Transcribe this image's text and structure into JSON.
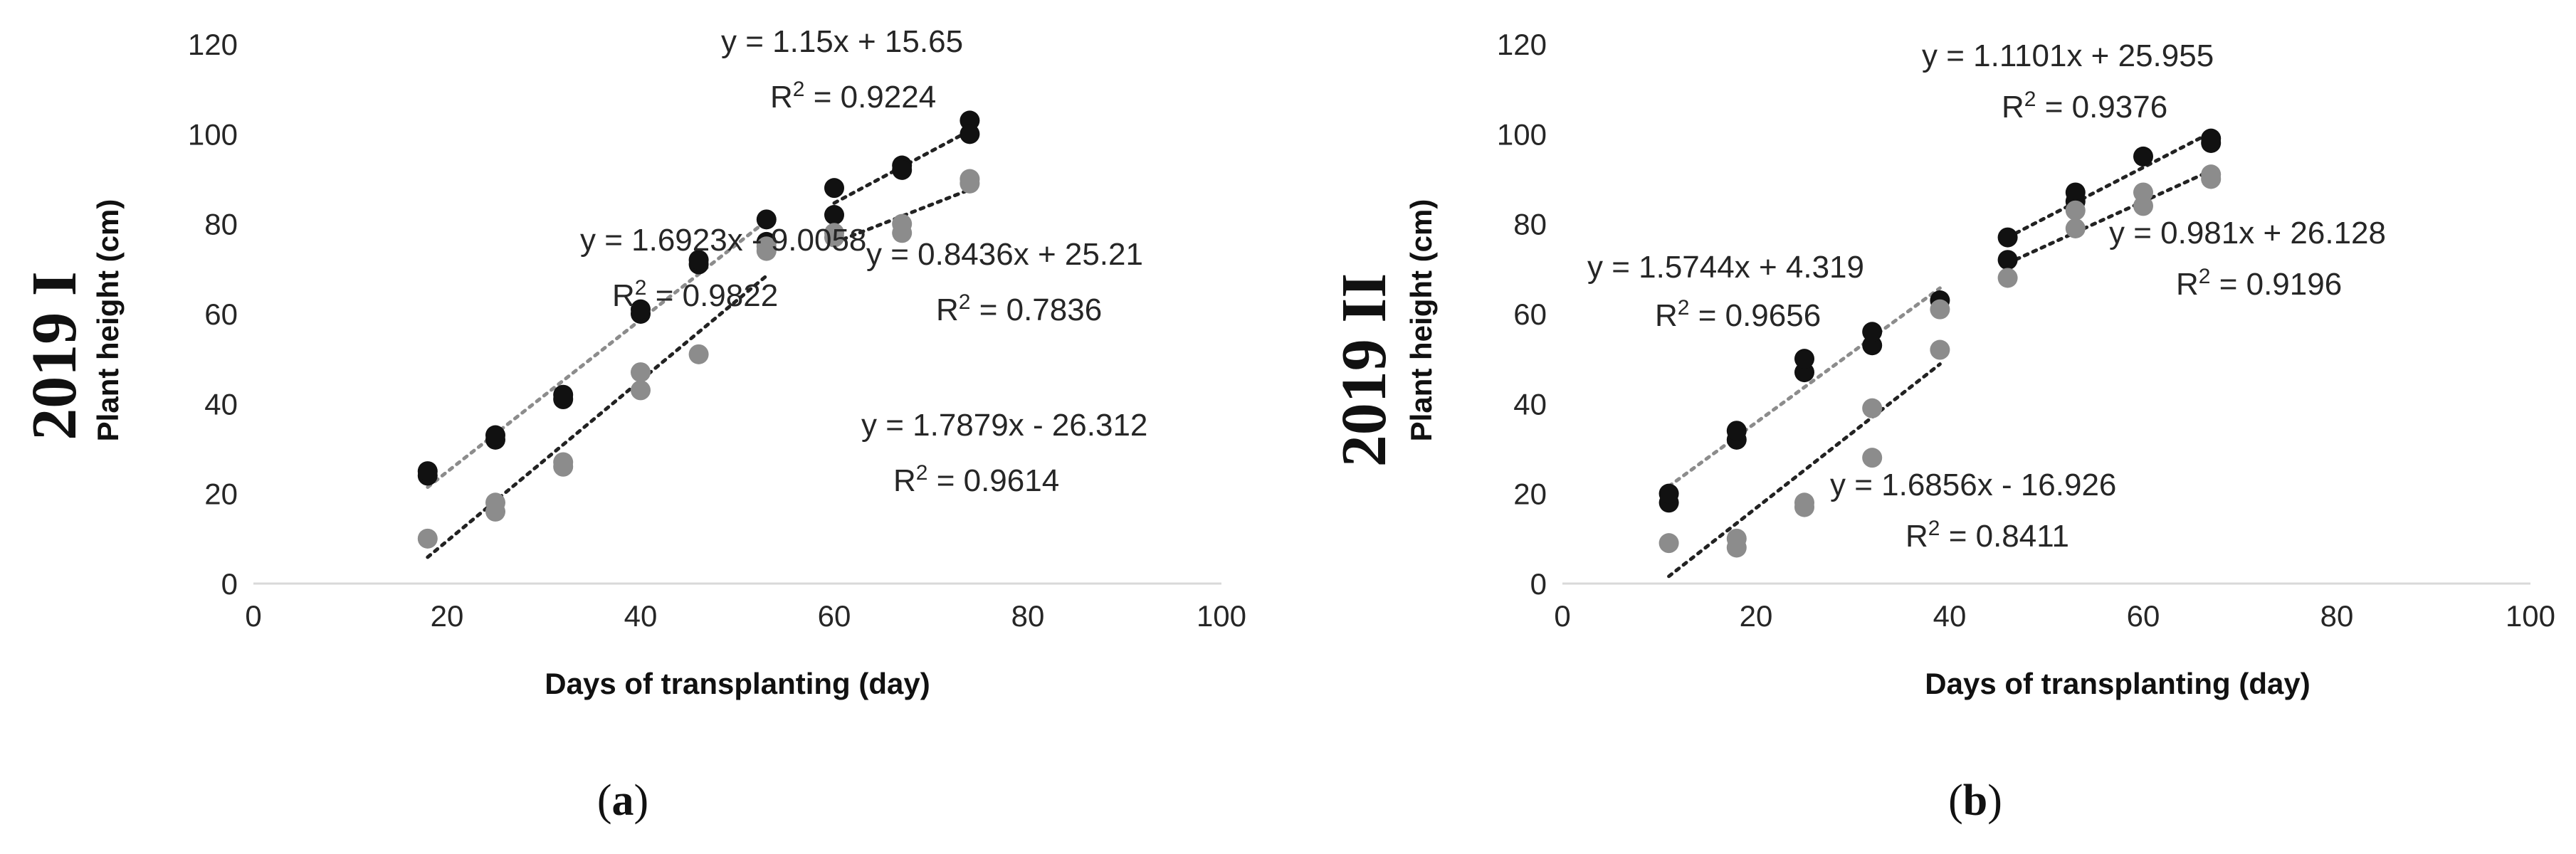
{
  "chart_data": [
    {
      "type": "scatter",
      "panel_label": "(a)",
      "panel_letter": "a",
      "year_label": "2019 I",
      "ylabel": "Plant height (cm)",
      "xlabel": "Days of transplanting (day)",
      "xlim": [
        0,
        100
      ],
      "ylim": [
        0,
        120
      ],
      "xticks": [
        "0",
        "20",
        "40",
        "60",
        "80",
        "100"
      ],
      "yticks": [
        "0",
        "20",
        "40",
        "60",
        "80",
        "100",
        "120"
      ],
      "grid": false,
      "colors": {
        "dark": "#111111",
        "gray": "#8c8c8c",
        "dark_trend": "#222222",
        "gray_trend": "#8c8c8c"
      },
      "series": [
        {
          "name": "dark-points",
          "color": "dark",
          "points": [
            [
              18,
              24
            ],
            [
              18,
              25
            ],
            [
              25,
              32
            ],
            [
              25,
              33
            ],
            [
              32,
              41
            ],
            [
              32,
              42
            ],
            [
              40,
              60
            ],
            [
              40,
              61
            ],
            [
              46,
              71
            ],
            [
              46,
              72
            ],
            [
              53,
              81
            ],
            [
              53,
              76
            ],
            [
              60,
              88
            ],
            [
              60,
              82
            ],
            [
              67,
              93
            ],
            [
              67,
              92
            ],
            [
              74,
              103
            ],
            [
              74,
              100
            ]
          ]
        },
        {
          "name": "gray-points",
          "color": "gray",
          "points": [
            [
              18,
              10
            ],
            [
              25,
              16
            ],
            [
              25,
              18
            ],
            [
              32,
              26
            ],
            [
              32,
              27
            ],
            [
              40,
              43
            ],
            [
              40,
              47
            ],
            [
              46,
              51
            ],
            [
              53,
              74
            ],
            [
              53,
              75
            ],
            [
              60,
              77
            ],
            [
              60,
              78
            ],
            [
              67,
              78
            ],
            [
              67,
              80
            ],
            [
              74,
              89
            ],
            [
              74,
              90
            ]
          ]
        }
      ],
      "trendlines": [
        {
          "name": "dark-early-trend",
          "color": "gray_trend",
          "x_range": [
            18,
            53
          ],
          "slope": 1.6923,
          "intercept": -9.0058,
          "equation": "y = 1.6923x - 9.0058",
          "r2_label": "R",
          "r2_exp": "2",
          "r2_value": " = 0.9822"
        },
        {
          "name": "gray-early-trend",
          "color": "dark_trend",
          "x_range": [
            18,
            53
          ],
          "slope": 1.7879,
          "intercept": -26.312,
          "equation": "y = 1.7879x - 26.312",
          "r2_label": "R",
          "r2_exp": "2",
          "r2_value": " = 0.9614"
        },
        {
          "name": "dark-late-trend",
          "color": "dark_trend",
          "x_range": [
            60,
            74
          ],
          "slope": 1.15,
          "intercept": 15.65,
          "equation": "y = 1.15x + 15.65",
          "r2_label": "R",
          "r2_exp": "2",
          "r2_value": " = 0.9224"
        },
        {
          "name": "gray-late-trend",
          "color": "dark_trend",
          "x_range": [
            60,
            74
          ],
          "slope": 0.8436,
          "intercept": 25.21,
          "equation": "y = 0.8436x + 25.21",
          "r2_label": "R",
          "r2_exp": "2",
          "r2_value": " = 0.7836"
        }
      ]
    },
    {
      "type": "scatter",
      "panel_label": "(b)",
      "panel_letter": "b",
      "year_label": "2019 II",
      "ylabel": "Plant height (cm)",
      "xlabel": "Days of transplanting (day)",
      "xlim": [
        0,
        100
      ],
      "ylim": [
        0,
        120
      ],
      "xticks": [
        "0",
        "20",
        "40",
        "60",
        "80",
        "100"
      ],
      "yticks": [
        "0",
        "20",
        "40",
        "60",
        "80",
        "100",
        "120"
      ],
      "grid": false,
      "colors": {
        "dark": "#111111",
        "gray": "#8c8c8c",
        "dark_trend": "#222222",
        "gray_trend": "#8c8c8c"
      },
      "series": [
        {
          "name": "dark-points",
          "color": "dark",
          "points": [
            [
              11,
              18
            ],
            [
              11,
              20
            ],
            [
              18,
              32
            ],
            [
              18,
              34
            ],
            [
              25,
              47
            ],
            [
              25,
              50
            ],
            [
              32,
              53
            ],
            [
              32,
              56
            ],
            [
              39,
              63
            ],
            [
              46,
              72
            ],
            [
              46,
              77
            ],
            [
              53,
              85
            ],
            [
              53,
              87
            ],
            [
              60,
              95
            ],
            [
              67,
              98
            ],
            [
              67,
              99
            ]
          ]
        },
        {
          "name": "gray-points",
          "color": "gray",
          "points": [
            [
              11,
              9
            ],
            [
              18,
              8
            ],
            [
              18,
              10
            ],
            [
              25,
              17
            ],
            [
              25,
              18
            ],
            [
              32,
              28
            ],
            [
              32,
              39
            ],
            [
              39,
              52
            ],
            [
              39,
              61
            ],
            [
              46,
              68
            ],
            [
              53,
              79
            ],
            [
              53,
              83
            ],
            [
              60,
              84
            ],
            [
              60,
              87
            ],
            [
              67,
              90
            ],
            [
              67,
              91
            ]
          ]
        }
      ],
      "trendlines": [
        {
          "name": "dark-early-trend",
          "color": "gray_trend",
          "x_range": [
            11,
            39
          ],
          "slope": 1.5744,
          "intercept": 4.319,
          "equation": "y = 1.5744x + 4.319",
          "r2_label": "R",
          "r2_exp": "2",
          "r2_value": " = 0.9656"
        },
        {
          "name": "gray-early-trend",
          "color": "dark_trend",
          "x_range": [
            11,
            39
          ],
          "slope": 1.6856,
          "intercept": -16.926,
          "equation": "y = 1.6856x - 16.926",
          "r2_label": "R",
          "r2_exp": "2",
          "r2_value": " = 0.8411"
        },
        {
          "name": "dark-late-trend",
          "color": "dark_trend",
          "x_range": [
            46,
            67
          ],
          "slope": 1.1101,
          "intercept": 25.955,
          "equation": "y = 1.1101x + 25.955",
          "r2_label": "R",
          "r2_exp": "2",
          "r2_value": " = 0.9376"
        },
        {
          "name": "gray-late-trend",
          "color": "dark_trend",
          "x_range": [
            46,
            67
          ],
          "slope": 0.981,
          "intercept": 26.128,
          "equation": "y = 0.981x + 26.128",
          "r2_label": "R",
          "r2_exp": "2",
          "r2_value": " = 0.9196"
        }
      ]
    }
  ]
}
